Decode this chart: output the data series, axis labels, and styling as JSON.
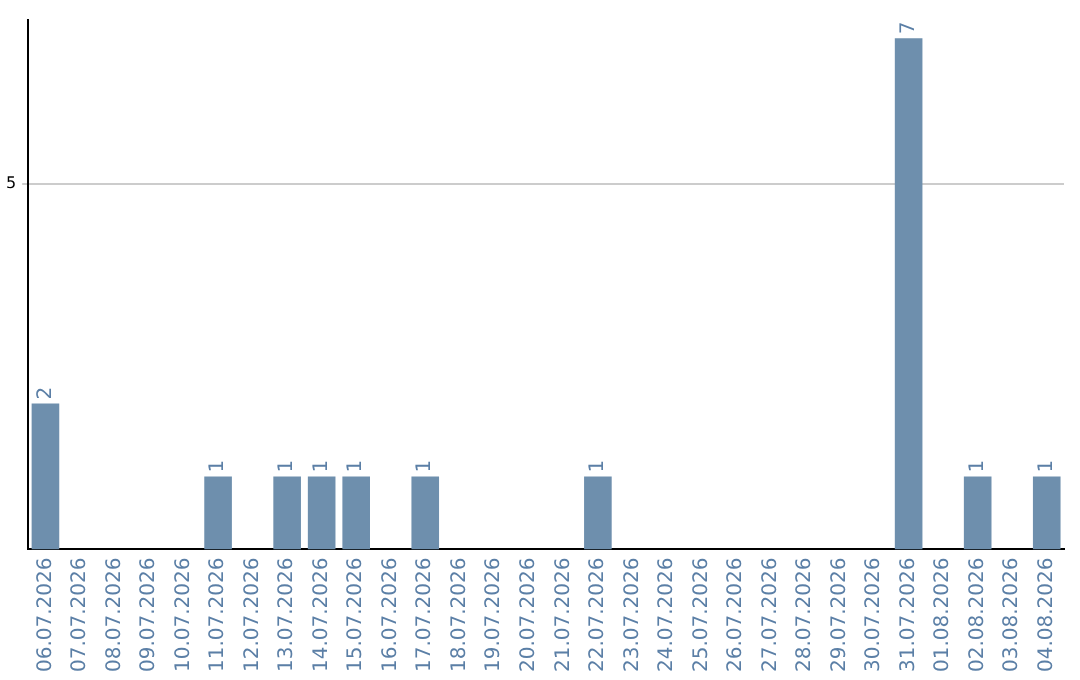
{
  "chart_data": {
    "type": "bar",
    "categories": [
      "06.07.2026",
      "07.07.2026",
      "08.07.2026",
      "09.07.2026",
      "10.07.2026",
      "11.07.2026",
      "12.07.2026",
      "13.07.2026",
      "14.07.2026",
      "15.07.2026",
      "16.07.2026",
      "17.07.2026",
      "18.07.2026",
      "19.07.2026",
      "20.07.2026",
      "21.07.2026",
      "22.07.2026",
      "23.07.2026",
      "24.07.2026",
      "25.07.2026",
      "26.07.2026",
      "27.07.2026",
      "28.07.2026",
      "29.07.2026",
      "30.07.2026",
      "31.07.2026",
      "01.08.2026",
      "02.08.2026",
      "03.08.2026",
      "04.08.2026"
    ],
    "values": [
      2,
      0,
      0,
      0,
      0,
      1,
      0,
      1,
      1,
      1,
      0,
      1,
      0,
      0,
      0,
      0,
      1,
      0,
      0,
      0,
      0,
      0,
      0,
      0,
      0,
      7,
      0,
      1,
      0,
      1
    ],
    "value_labels": [
      "2",
      null,
      null,
      null,
      null,
      "1",
      null,
      "1",
      "1",
      "1",
      null,
      "1",
      null,
      null,
      null,
      null,
      "1",
      null,
      null,
      null,
      null,
      null,
      null,
      null,
      null,
      "7",
      null,
      "1",
      null,
      "1"
    ],
    "color": "#6e8fad",
    "ylim": [
      0,
      7.25
    ],
    "yticks": [
      5
    ],
    "grid": "y",
    "legend": false
  }
}
